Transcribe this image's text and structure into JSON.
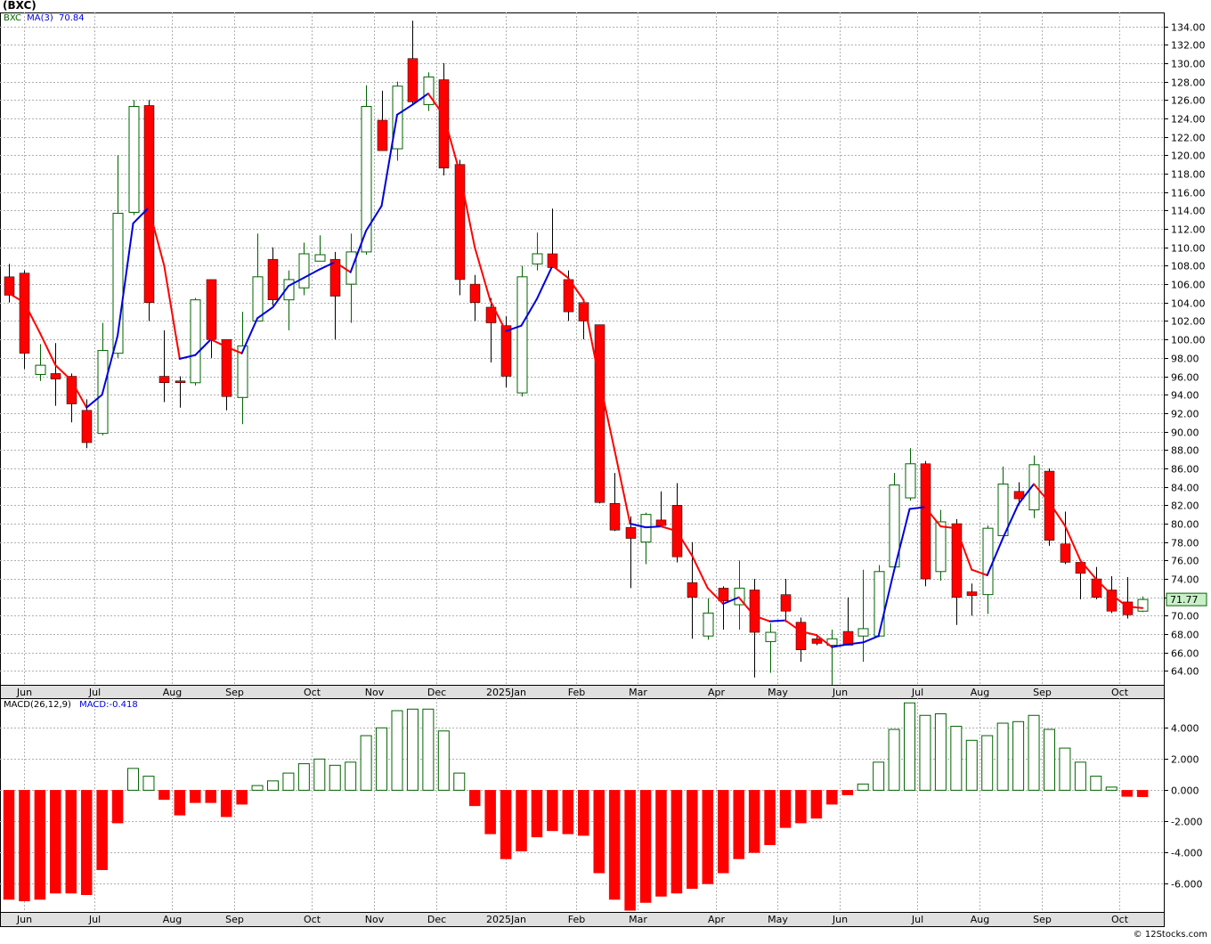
{
  "title": "(BXC)",
  "copyright": "© 12Stocks.com",
  "price_panel": {
    "ticker_label": "BXC",
    "ma_label": "MA(3)",
    "ma_value": "70.84",
    "last_price": "71.77"
  },
  "macd_panel": {
    "label": "MACD(26,12,9)",
    "value_label": "MACD:-0.418"
  },
  "colors": {
    "up_candle": "#006400",
    "down_candle": "#ff0000",
    "ma_up": "#0000dd",
    "ma_down": "#ff0000",
    "macd_pos": "#006400",
    "macd_neg": "#ff0000",
    "grid": "#b0b0b0",
    "axis_strip": "#e0e0e0",
    "last_price_box": "#c8f0c8"
  },
  "chart_data": [
    {
      "type": "candlestick",
      "interval": "weekly",
      "ylim": [
        62.5,
        135.5
      ],
      "y_ticks": [
        "64.00",
        "66.00",
        "68.00",
        "70.00",
        "72.00",
        "74.00",
        "76.00",
        "78.00",
        "80.00",
        "82.00",
        "84.00",
        "86.00",
        "88.00",
        "90.00",
        "92.00",
        "94.00",
        "96.00",
        "98.00",
        "100.00",
        "102.00",
        "104.00",
        "106.00",
        "108.00",
        "110.00",
        "112.00",
        "114.00",
        "116.00",
        "118.00",
        "120.00",
        "122.00",
        "124.00",
        "126.00",
        "128.00",
        "130.00",
        "132.00",
        "134.00"
      ],
      "x_labels": [
        {
          "label": "Jun",
          "week": 1
        },
        {
          "label": "Jul",
          "week": 5.5
        },
        {
          "label": "Aug",
          "week": 10.5
        },
        {
          "label": "Sep",
          "week": 14.5
        },
        {
          "label": "Oct",
          "week": 19.5
        },
        {
          "label": "Nov",
          "week": 23.5
        },
        {
          "label": "Dec",
          "week": 27.5
        },
        {
          "label": "2025Jan",
          "week": 32
        },
        {
          "label": "Feb",
          "week": 36.5
        },
        {
          "label": "Mar",
          "week": 40.5
        },
        {
          "label": "Apr",
          "week": 45.5
        },
        {
          "label": "May",
          "week": 49.5
        },
        {
          "label": "Jun",
          "week": 53.5
        },
        {
          "label": "Jul",
          "week": 58.5
        },
        {
          "label": "Aug",
          "week": 62.5
        },
        {
          "label": "Sep",
          "week": 66.5
        },
        {
          "label": "Oct",
          "week": 71.5
        }
      ],
      "candles": [
        {
          "o": 106.8,
          "h": 108.2,
          "l": 104.0,
          "c": 104.8
        },
        {
          "o": 107.2,
          "h": 107.5,
          "l": 96.8,
          "c": 98.5
        },
        {
          "o": 96.2,
          "h": 99.5,
          "l": 95.5,
          "c": 97.2
        },
        {
          "o": 96.3,
          "h": 99.6,
          "l": 92.8,
          "c": 95.7
        },
        {
          "o": 96.0,
          "h": 96.3,
          "l": 91.0,
          "c": 93.0
        },
        {
          "o": 92.3,
          "h": 93.5,
          "l": 88.2,
          "c": 88.8
        },
        {
          "o": 89.8,
          "h": 101.8,
          "l": 89.6,
          "c": 98.8
        },
        {
          "o": 98.5,
          "h": 120.0,
          "l": 98.0,
          "c": 113.7
        },
        {
          "o": 113.8,
          "h": 126.0,
          "l": 113.5,
          "c": 125.3
        },
        {
          "o": 125.4,
          "h": 126.0,
          "l": 102.0,
          "c": 104.0
        },
        {
          "o": 96.0,
          "h": 101.0,
          "l": 93.2,
          "c": 95.3
        },
        {
          "o": 95.5,
          "h": 96.0,
          "l": 92.6,
          "c": 95.3
        },
        {
          "o": 95.3,
          "h": 104.5,
          "l": 95.0,
          "c": 104.3
        },
        {
          "o": 106.5,
          "h": 106.5,
          "l": 98.0,
          "c": 100.0
        },
        {
          "o": 100.0,
          "h": 100.0,
          "l": 92.3,
          "c": 93.8
        },
        {
          "o": 93.7,
          "h": 103.0,
          "l": 90.8,
          "c": 99.3
        },
        {
          "o": 102.0,
          "h": 111.5,
          "l": 102.0,
          "c": 106.8
        },
        {
          "o": 108.7,
          "h": 110.0,
          "l": 103.7,
          "c": 104.3
        },
        {
          "o": 104.3,
          "h": 107.5,
          "l": 101.0,
          "c": 106.5
        },
        {
          "o": 105.6,
          "h": 110.5,
          "l": 104.8,
          "c": 109.3
        },
        {
          "o": 108.5,
          "h": 111.3,
          "l": 108.5,
          "c": 109.2
        },
        {
          "o": 108.7,
          "h": 109.5,
          "l": 100.0,
          "c": 104.7
        },
        {
          "o": 106.0,
          "h": 111.5,
          "l": 101.8,
          "c": 109.5
        },
        {
          "o": 109.5,
          "h": 127.6,
          "l": 109.2,
          "c": 125.3
        },
        {
          "o": 123.8,
          "h": 127.0,
          "l": 121.0,
          "c": 120.5
        },
        {
          "o": 120.7,
          "h": 128.0,
          "l": 119.4,
          "c": 127.5
        },
        {
          "o": 130.5,
          "h": 134.6,
          "l": 125.5,
          "c": 125.8
        },
        {
          "o": 125.5,
          "h": 129.0,
          "l": 124.8,
          "c": 128.5
        },
        {
          "o": 128.2,
          "h": 130.0,
          "l": 117.8,
          "c": 118.6
        },
        {
          "o": 119.0,
          "h": 119.5,
          "l": 104.8,
          "c": 106.5
        },
        {
          "o": 106.0,
          "h": 107.0,
          "l": 102.0,
          "c": 104.0
        },
        {
          "o": 103.5,
          "h": 104.5,
          "l": 97.5,
          "c": 101.8
        },
        {
          "o": 101.5,
          "h": 102.5,
          "l": 94.8,
          "c": 96.0
        },
        {
          "o": 94.2,
          "h": 108.0,
          "l": 93.8,
          "c": 106.8
        },
        {
          "o": 108.2,
          "h": 111.6,
          "l": 107.5,
          "c": 109.3
        },
        {
          "o": 109.3,
          "h": 114.2,
          "l": 107.8,
          "c": 107.8
        },
        {
          "o": 106.5,
          "h": 107.5,
          "l": 102.0,
          "c": 103.0
        },
        {
          "o": 104.0,
          "h": 104.3,
          "l": 100.0,
          "c": 102.0
        },
        {
          "o": 101.6,
          "h": 101.6,
          "l": 82.2,
          "c": 82.3
        },
        {
          "o": 82.2,
          "h": 85.5,
          "l": 79.2,
          "c": 79.3
        },
        {
          "o": 79.6,
          "h": 80.8,
          "l": 73.0,
          "c": 78.4
        },
        {
          "o": 78.0,
          "h": 81.2,
          "l": 75.6,
          "c": 81.0
        },
        {
          "o": 80.4,
          "h": 83.5,
          "l": 79.8,
          "c": 79.8
        },
        {
          "o": 82.0,
          "h": 84.4,
          "l": 75.8,
          "c": 76.4
        },
        {
          "o": 73.6,
          "h": 78.0,
          "l": 67.5,
          "c": 72.0
        },
        {
          "o": 67.8,
          "h": 71.9,
          "l": 67.4,
          "c": 70.3
        },
        {
          "o": 73.0,
          "h": 73.2,
          "l": 68.5,
          "c": 71.6
        },
        {
          "o": 71.2,
          "h": 76.0,
          "l": 68.5,
          "c": 73.0
        },
        {
          "o": 72.8,
          "h": 74.0,
          "l": 63.3,
          "c": 68.2
        },
        {
          "o": 67.2,
          "h": 69.2,
          "l": 63.8,
          "c": 68.2
        },
        {
          "o": 72.3,
          "h": 74.0,
          "l": 69.3,
          "c": 70.5
        },
        {
          "o": 69.3,
          "h": 69.8,
          "l": 65.0,
          "c": 66.3
        },
        {
          "o": 67.5,
          "h": 68.0,
          "l": 66.8,
          "c": 67.0
        },
        {
          "o": 66.8,
          "h": 68.5,
          "l": 62.5,
          "c": 67.5
        },
        {
          "o": 68.3,
          "h": 72.0,
          "l": 66.8,
          "c": 66.8
        },
        {
          "o": 67.8,
          "h": 75.0,
          "l": 65.0,
          "c": 68.6
        },
        {
          "o": 67.8,
          "h": 75.5,
          "l": 67.7,
          "c": 74.8
        },
        {
          "o": 75.3,
          "h": 85.5,
          "l": 75.0,
          "c": 84.2
        },
        {
          "o": 82.8,
          "h": 88.2,
          "l": 82.5,
          "c": 86.5
        },
        {
          "o": 86.5,
          "h": 86.8,
          "l": 73.2,
          "c": 74.0
        },
        {
          "o": 74.8,
          "h": 81.5,
          "l": 73.8,
          "c": 80.2
        },
        {
          "o": 80.0,
          "h": 80.5,
          "l": 69.0,
          "c": 72.0
        },
        {
          "o": 72.6,
          "h": 73.5,
          "l": 70.0,
          "c": 72.2
        },
        {
          "o": 72.3,
          "h": 79.8,
          "l": 70.2,
          "c": 79.5
        },
        {
          "o": 78.7,
          "h": 86.2,
          "l": 78.4,
          "c": 84.3
        },
        {
          "o": 83.5,
          "h": 84.5,
          "l": 82.0,
          "c": 82.7
        },
        {
          "o": 81.5,
          "h": 87.4,
          "l": 80.6,
          "c": 86.4
        },
        {
          "o": 85.7,
          "h": 86.0,
          "l": 77.6,
          "c": 78.2
        },
        {
          "o": 77.8,
          "h": 81.3,
          "l": 75.6,
          "c": 75.8
        },
        {
          "o": 75.8,
          "h": 75.8,
          "l": 71.8,
          "c": 74.6
        },
        {
          "o": 74.0,
          "h": 75.3,
          "l": 71.8,
          "c": 72.0
        },
        {
          "o": 72.8,
          "h": 74.3,
          "l": 70.3,
          "c": 70.5
        },
        {
          "o": 71.5,
          "h": 74.2,
          "l": 69.7,
          "c": 70.1
        },
        {
          "o": 70.5,
          "h": 72.1,
          "l": 70.4,
          "c": 71.77
        }
      ],
      "ma3": [
        105.0,
        104.0,
        100.7,
        97.2,
        95.6,
        92.6,
        94.0,
        100.4,
        112.6,
        114.3,
        108.0,
        97.9,
        98.3,
        100.0,
        99.2,
        98.5,
        102.3,
        103.5,
        105.8,
        106.7,
        107.6,
        108.4,
        107.3,
        111.8,
        114.5,
        124.4,
        125.5,
        126.7,
        124.3,
        118.3,
        110.0,
        104.2,
        100.9,
        101.5,
        104.4,
        108.0,
        106.7,
        104.3,
        95.8,
        88.0,
        80.0,
        79.6,
        79.7,
        79.2,
        76.5,
        73.0,
        71.3,
        72.0,
        70.0,
        69.4,
        69.5,
        68.3,
        67.9,
        66.6,
        66.9,
        67.1,
        67.8,
        74.9,
        81.6,
        81.8,
        79.7,
        79.5,
        75.0,
        74.4,
        78.4,
        82.1,
        84.3,
        82.3,
        79.8,
        76.0,
        74.0,
        72.3,
        71.0,
        70.84
      ],
      "ma3_color": [
        "down",
        "down",
        "down",
        "down",
        "down",
        "down",
        "up",
        "up",
        "up",
        "up",
        "down",
        "down",
        "up",
        "up",
        "down",
        "down",
        "up",
        "up",
        "up",
        "up",
        "up",
        "up",
        "down",
        "up",
        "up",
        "up",
        "up",
        "up",
        "down",
        "down",
        "down",
        "down",
        "down",
        "up",
        "up",
        "up",
        "down",
        "down",
        "down",
        "down",
        "down",
        "up",
        "up",
        "down",
        "down",
        "down",
        "down",
        "up",
        "down",
        "down",
        "up",
        "down",
        "down",
        "down",
        "up",
        "up",
        "up",
        "up",
        "up",
        "up",
        "down",
        "down",
        "down",
        "down",
        "up",
        "up",
        "up",
        "down",
        "down",
        "down",
        "down",
        "down",
        "down",
        "down"
      ]
    },
    {
      "type": "bar",
      "name": "MACD(26,12,9)",
      "ylim": [
        -7.8,
        5.9
      ],
      "y_ticks": [
        "-6.000",
        "-4.000",
        "-2.000",
        "0.000",
        "2.000",
        "4.000"
      ],
      "values": [
        -7.0,
        -7.1,
        -7.0,
        -6.6,
        -6.6,
        -6.7,
        -5.1,
        -2.1,
        1.4,
        0.9,
        -0.6,
        -1.6,
        -0.8,
        -0.8,
        -1.7,
        -0.9,
        0.3,
        0.6,
        1.1,
        1.7,
        2.0,
        1.6,
        1.8,
        3.5,
        4.0,
        5.1,
        5.2,
        5.2,
        3.8,
        1.1,
        -1.0,
        -2.8,
        -4.4,
        -3.9,
        -3.0,
        -2.6,
        -2.8,
        -2.9,
        -5.3,
        -7.0,
        -7.7,
        -7.2,
        -6.8,
        -6.6,
        -6.3,
        -6.0,
        -5.3,
        -4.4,
        -4.0,
        -3.5,
        -2.4,
        -2.1,
        -1.8,
        -0.9,
        -0.3,
        0.4,
        1.8,
        3.9,
        5.6,
        4.8,
        4.9,
        4.1,
        3.2,
        3.5,
        4.3,
        4.4,
        4.8,
        3.9,
        2.7,
        1.8,
        0.9,
        0.2,
        -0.4,
        -0.418
      ]
    }
  ]
}
